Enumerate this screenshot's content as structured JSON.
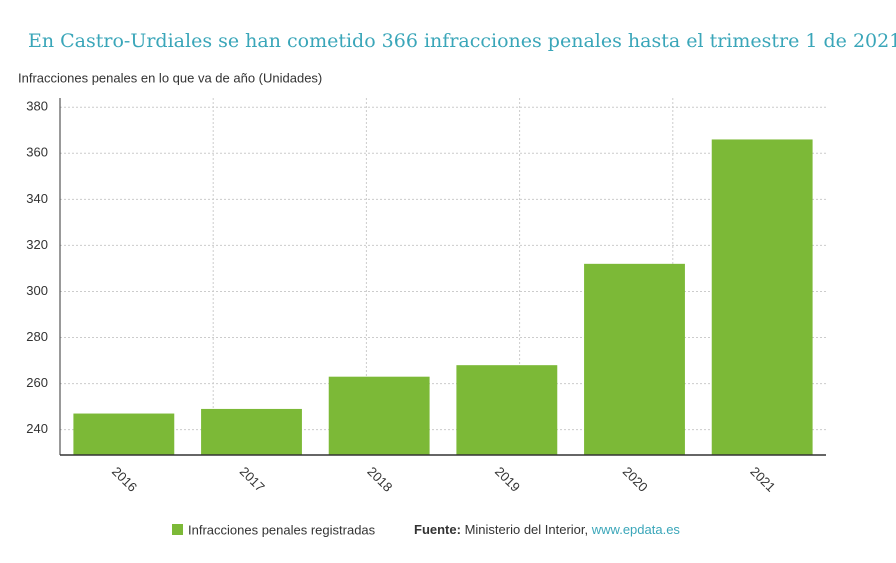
{
  "chart_data": {
    "type": "bar",
    "title": "En Castro-Urdiales se han cometido 366 infracciones penales hasta el trimestre 1 de 2021",
    "subtitle": "Infracciones penales en lo que va de año (Unidades)",
    "categories": [
      "2016",
      "2017",
      "2018",
      "2019",
      "2020",
      "2021"
    ],
    "series": [
      {
        "name": "Infracciones penales registradas",
        "color": "#7cb937",
        "values": [
          247,
          249,
          263,
          268,
          312,
          366
        ]
      }
    ],
    "ylim": [
      229,
      384
    ],
    "yticks": [
      240,
      260,
      280,
      300,
      320,
      340,
      360,
      380
    ],
    "grid": true,
    "source_label": "Fuente:",
    "source": "Ministerio del Interior,",
    "source_link": "www.epdata.es"
  }
}
